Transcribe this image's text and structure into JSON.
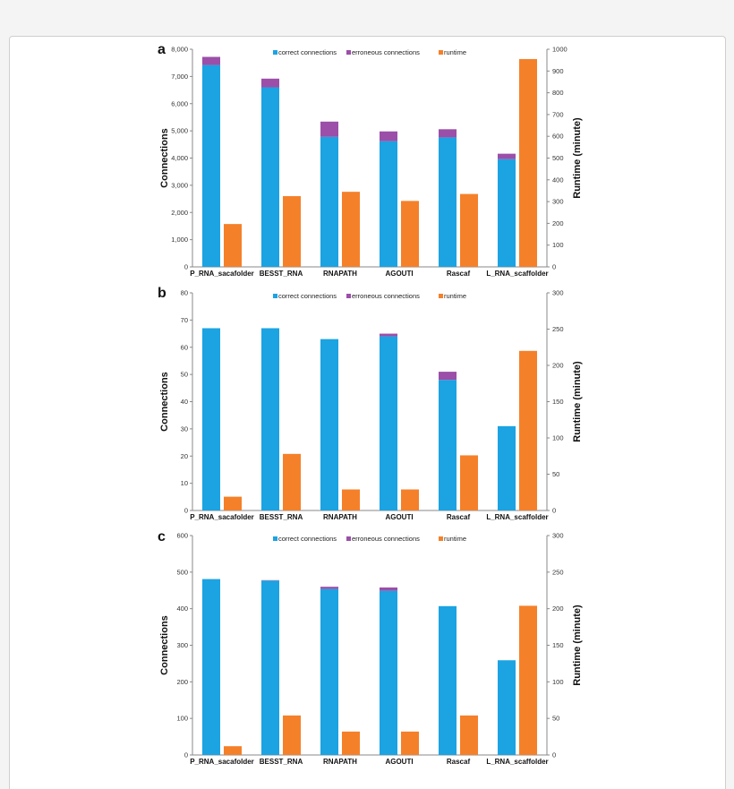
{
  "chart_data": [
    {
      "type": "bar",
      "panel": "a",
      "categories": [
        "P_RNA_sacafolder",
        "BESST_RNA",
        "RNAPATH",
        "AGOUTI",
        "Rascaf",
        "L_RNA_scaffolder"
      ],
      "series": [
        {
          "name": "correct connections",
          "axis": "left",
          "stack": "connections",
          "values": [
            7420,
            6600,
            4780,
            4620,
            4760,
            3960
          ]
        },
        {
          "name": "erroneous connections",
          "axis": "left",
          "stack": "connections",
          "values": [
            300,
            320,
            560,
            360,
            300,
            200
          ]
        },
        {
          "name": "runtime",
          "axis": "right",
          "values": [
            197,
            325,
            345,
            303,
            335,
            955
          ]
        }
      ],
      "xlabel": "",
      "ylabel": "Connections",
      "ylabel_right": "Runtime (minute)",
      "ylim": [
        0,
        8000
      ],
      "ylim_right": [
        0,
        1000
      ],
      "yticks": [
        "0",
        "1,000",
        "2,000",
        "3,000",
        "4,000",
        "5,000",
        "6,000",
        "7,000",
        "8,000"
      ],
      "yticks_right": [
        "0",
        "100",
        "200",
        "300",
        "400",
        "500",
        "600",
        "700",
        "800",
        "900",
        "1000"
      ],
      "legend_position": "top"
    },
    {
      "type": "bar",
      "panel": "b",
      "categories": [
        "P_RNA_sacafolder",
        "BESST_RNA",
        "RNAPATH",
        "AGOUTI",
        "Rascaf",
        "L_RNA_scaffolder"
      ],
      "series": [
        {
          "name": "correct connections",
          "axis": "left",
          "stack": "connections",
          "values": [
            67,
            67,
            63,
            64,
            48,
            31
          ]
        },
        {
          "name": "erroneous connections",
          "axis": "left",
          "stack": "connections",
          "values": [
            0,
            0,
            0,
            1,
            3,
            0
          ]
        },
        {
          "name": "runtime",
          "axis": "right",
          "values": [
            19,
            78,
            29,
            29,
            76,
            220
          ]
        }
      ],
      "xlabel": "",
      "ylabel": "Connections",
      "ylabel_right": "Runtime (minute)",
      "ylim": [
        0,
        80
      ],
      "ylim_right": [
        0,
        300
      ],
      "yticks": [
        "0",
        "10",
        "20",
        "30",
        "40",
        "50",
        "60",
        "70",
        "80"
      ],
      "yticks_right": [
        "0",
        "50",
        "100",
        "150",
        "200",
        "250",
        "300"
      ],
      "legend_position": "top"
    },
    {
      "type": "bar",
      "panel": "c",
      "categories": [
        "P_RNA_sacafolder",
        "BESST_RNA",
        "RNAPATH",
        "AGOUTI",
        "Rascaf",
        "L_RNA_scaffolder"
      ],
      "series": [
        {
          "name": "correct connections",
          "axis": "left",
          "stack": "connections",
          "values": [
            481,
            477,
            454,
            449,
            407,
            259
          ]
        },
        {
          "name": "erroneous connections",
          "axis": "left",
          "stack": "connections",
          "values": [
            0,
            1,
            6,
            9,
            0,
            0
          ]
        },
        {
          "name": "runtime",
          "axis": "right",
          "values": [
            12,
            54,
            32,
            32,
            54,
            204
          ]
        }
      ],
      "xlabel": "",
      "ylabel": "Connections",
      "ylabel_right": "Runtime (minute)",
      "ylim": [
        0,
        600
      ],
      "ylim_right": [
        0,
        300
      ],
      "yticks": [
        "0",
        "100",
        "200",
        "300",
        "400",
        "500",
        "600"
      ],
      "yticks_right": [
        "0",
        "50",
        "100",
        "150",
        "200",
        "250",
        "300"
      ],
      "legend_position": "top"
    }
  ],
  "colors": {
    "correct": "#1ba3e2",
    "erroneous": "#9b4fa8",
    "runtime": "#f5802a"
  }
}
